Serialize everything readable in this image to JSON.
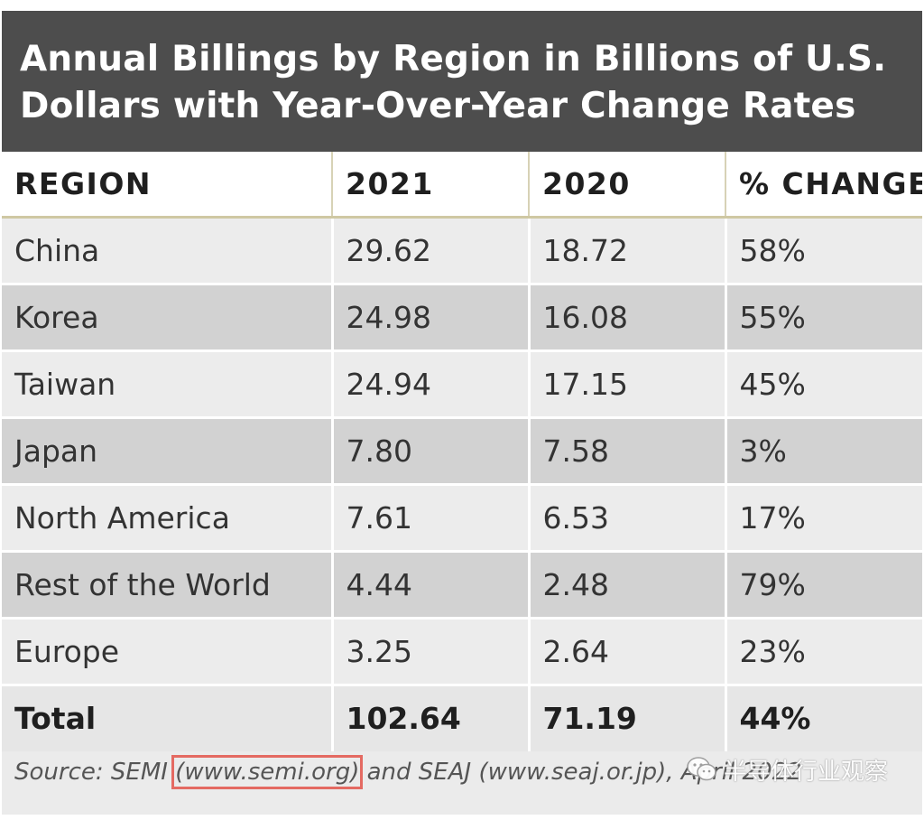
{
  "chart_data": {
    "type": "table",
    "title_lines": [
      "Annual Billings by Region in Billions of U.S.",
      "Dollars with Year-Over-Year Change Rates"
    ],
    "columns": [
      "REGION",
      "2021",
      "2020",
      "% CHANGE"
    ],
    "rows": [
      {
        "region": "China",
        "y2021": "29.62",
        "y2020": "18.72",
        "change": "58%"
      },
      {
        "region": "Korea",
        "y2021": "24.98",
        "y2020": "16.08",
        "change": "55%"
      },
      {
        "region": "Taiwan",
        "y2021": "24.94",
        "y2020": "17.15",
        "change": "45%"
      },
      {
        "region": "Japan",
        "y2021": "7.80",
        "y2020": "7.58",
        "change": "3%"
      },
      {
        "region": "North America",
        "y2021": "7.61",
        "y2020": "6.53",
        "change": "17%"
      },
      {
        "region": "Rest of the World",
        "y2021": "4.44",
        "y2020": "2.48",
        "change": "79%"
      },
      {
        "region": "Europe",
        "y2021": "3.25",
        "y2020": "2.64",
        "change": "23%"
      }
    ],
    "total": {
      "region": "Total",
      "y2021": "102.64",
      "y2020": "71.19",
      "change": "44%"
    }
  },
  "source": {
    "prefix": "Source: SEMI ",
    "highlighted": "(www.semi.org)",
    "suffix": " and SEAJ (www.seaj.or.jp), April 2022"
  },
  "watermark": {
    "text": "半导体行业观察",
    "icon": "wechat-icon"
  },
  "colors": {
    "title_bg": "#4d4d4d",
    "header_bg": "#ffffff",
    "row_light": "#ececec",
    "row_dark": "#d2d2d2",
    "highlight_box": "#e46a62"
  }
}
